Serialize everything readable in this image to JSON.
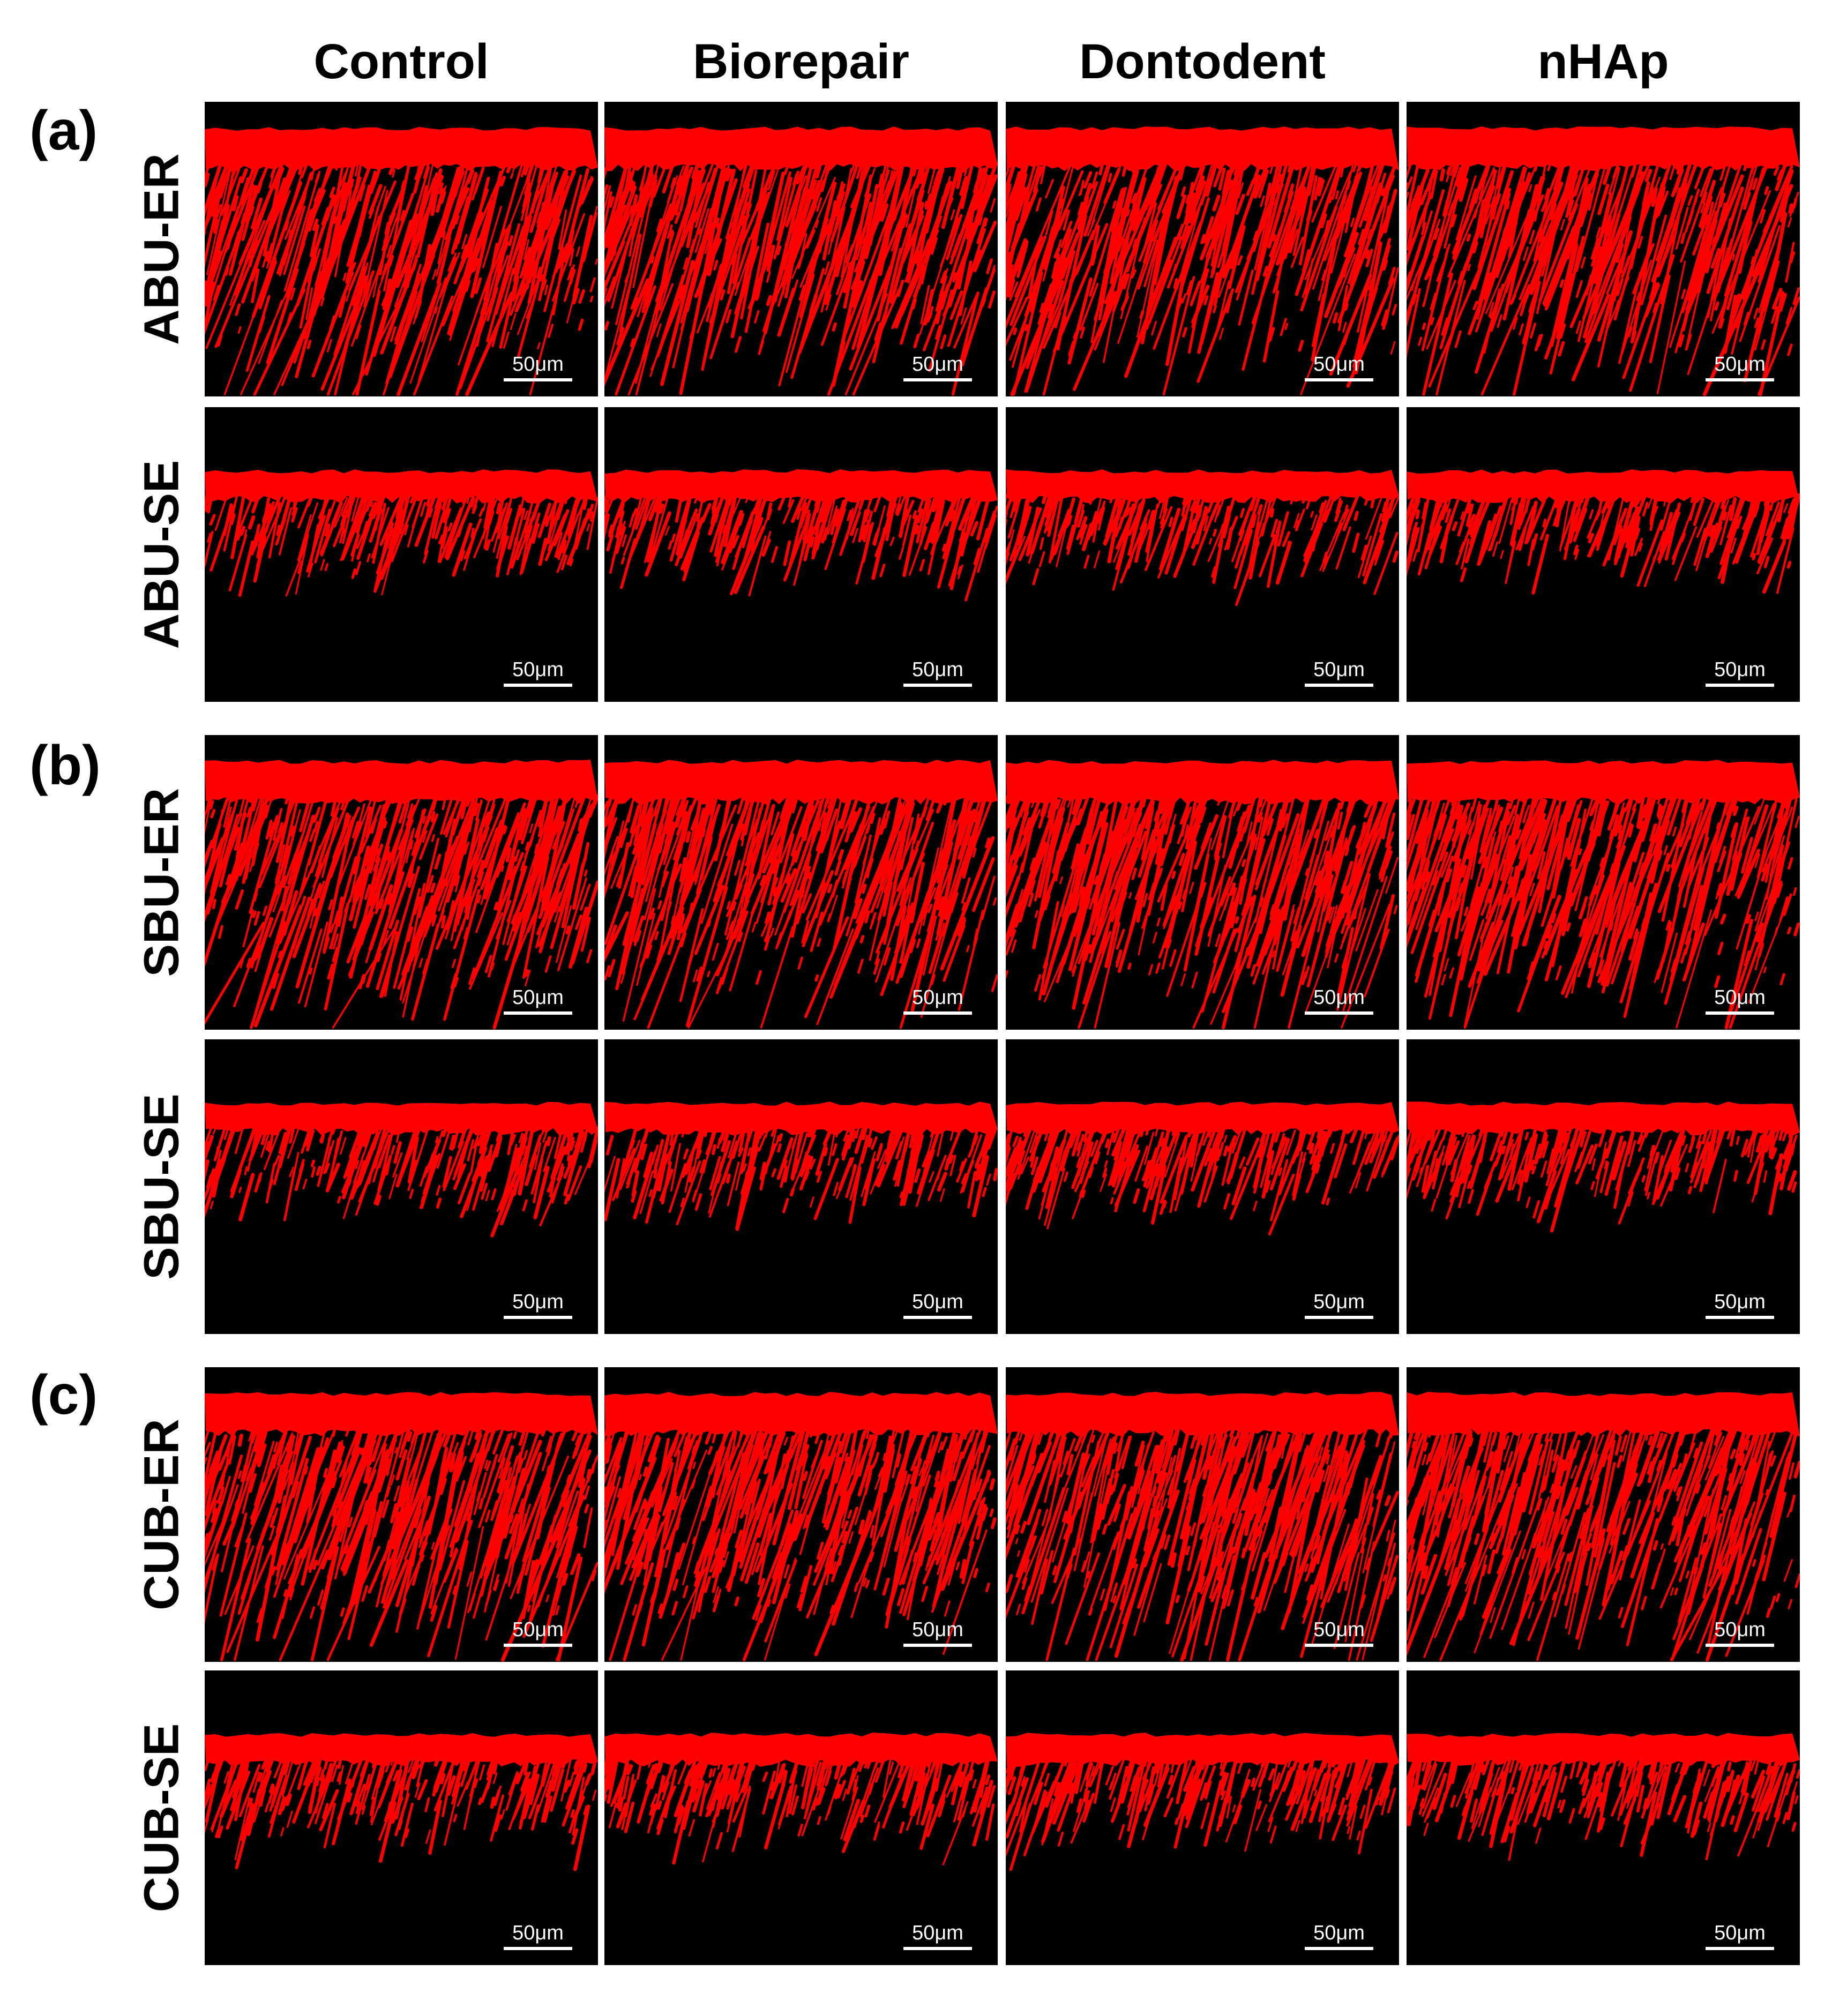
{
  "columns": [
    "Control",
    "Biorepair",
    "Dontodent",
    "nHAp"
  ],
  "groups": [
    {
      "label": "(a)",
      "rows": [
        "ABU-ER",
        "ABU-SE"
      ]
    },
    {
      "label": "(b)",
      "rows": [
        "SBU-ER",
        "SBU-SE"
      ]
    },
    {
      "label": "(c)",
      "rows": [
        "CUB-ER",
        "CUB-SE"
      ]
    }
  ],
  "scale_bar": "50μm",
  "colors": {
    "background": "#000000",
    "stain": "#ff0000",
    "scale": "#ffffff"
  }
}
